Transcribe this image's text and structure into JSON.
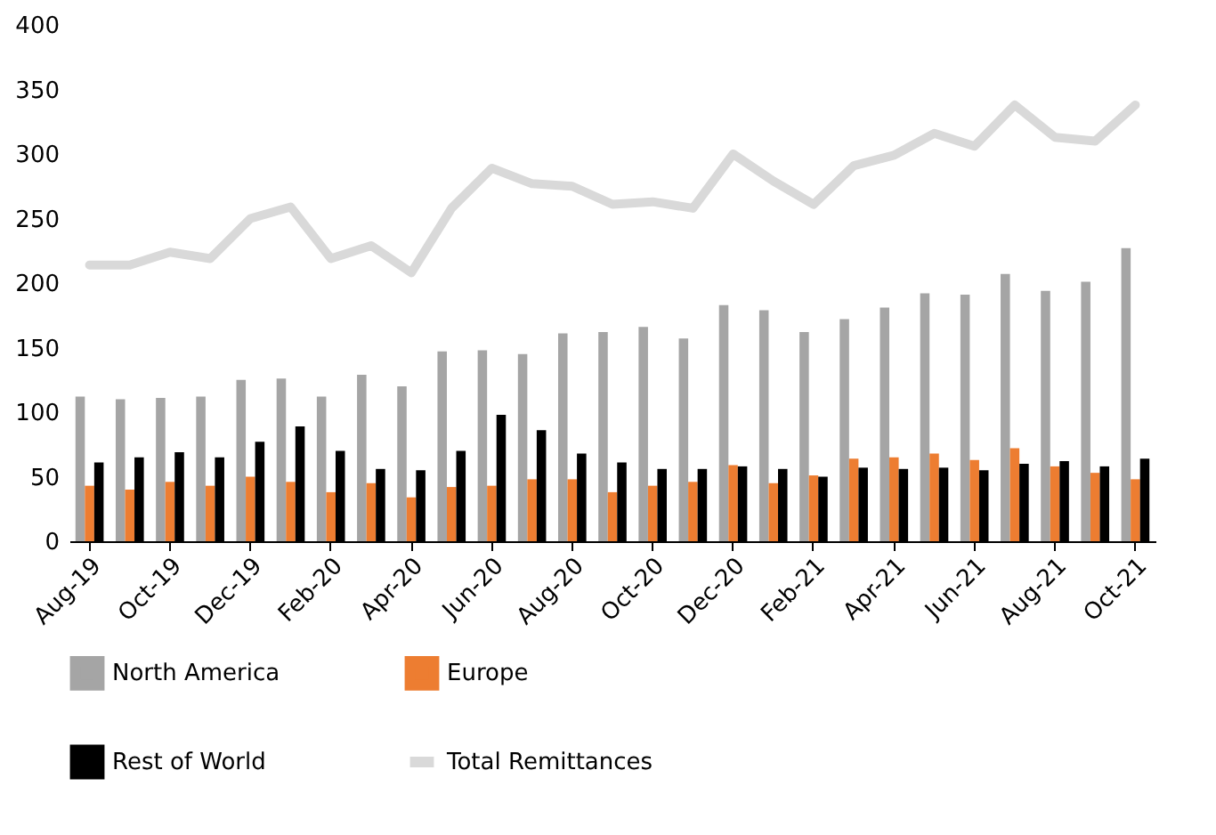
{
  "chart_data": {
    "type": "bar",
    "categories": [
      "Aug-19",
      null,
      "Oct-19",
      null,
      "Dec-19",
      null,
      "Feb-20",
      null,
      "Apr-20",
      null,
      "Jun-20",
      null,
      "Aug-20",
      null,
      "Oct-20",
      null,
      "Dec-20",
      null,
      "Feb-21",
      null,
      "Apr-21",
      null,
      "Jun-21",
      null,
      "Aug-21",
      null,
      "Oct-21"
    ],
    "series": [
      {
        "name": "North America",
        "color": "#a5a5a5",
        "values": [
          112,
          110,
          111,
          112,
          125,
          126,
          112,
          129,
          120,
          147,
          148,
          145,
          161,
          162,
          166,
          157,
          183,
          179,
          162,
          172,
          181,
          192,
          191,
          207,
          194,
          201,
          227
        ]
      },
      {
        "name": "Europe",
        "color": "#ed7d31",
        "values": [
          43,
          40,
          46,
          43,
          50,
          46,
          38,
          45,
          34,
          42,
          43,
          48,
          48,
          38,
          43,
          46,
          59,
          45,
          51,
          64,
          65,
          68,
          63,
          72,
          58,
          53,
          48
        ]
      },
      {
        "name": "Rest of World",
        "color": "#000000",
        "values": [
          61,
          65,
          69,
          65,
          77,
          89,
          70,
          56,
          55,
          70,
          98,
          86,
          68,
          61,
          56,
          56,
          58,
          56,
          50,
          57,
          56,
          57,
          55,
          60,
          62,
          58,
          64
        ]
      },
      {
        "name": "Total Remittances",
        "type": "line",
        "color": "#d9d9d9",
        "values": [
          214,
          214,
          224,
          219,
          250,
          259,
          219,
          229,
          208,
          258,
          289,
          277,
          275,
          261,
          263,
          258,
          300,
          279,
          261,
          291,
          299,
          316,
          306,
          338,
          313,
          310,
          338
        ]
      }
    ],
    "ylim": [
      0,
      400
    ],
    "yticks": [
      0,
      50,
      100,
      150,
      200,
      250,
      300,
      350,
      400
    ],
    "grid": false,
    "legend": "bottom"
  }
}
